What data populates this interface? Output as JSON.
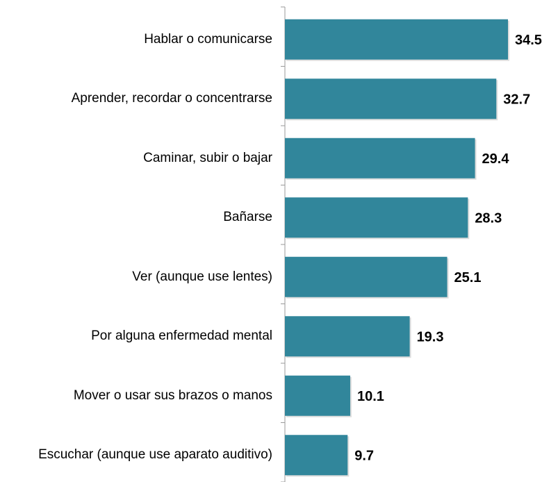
{
  "chart_data": {
    "type": "barh",
    "categories": [
      "Hablar o comunicarse",
      "Aprender, recordar o concentrarse",
      "Caminar, subir o bajar",
      "Bañarse",
      "Ver (aunque use lentes)",
      "Por alguna enfermedad mental",
      "Mover o usar sus brazos o manos",
      "Escuchar (aunque use aparato auditivo)"
    ],
    "values": [
      34.5,
      32.7,
      29.4,
      28.3,
      25.1,
      19.3,
      10.1,
      9.7
    ],
    "color": "#31869b"
  }
}
